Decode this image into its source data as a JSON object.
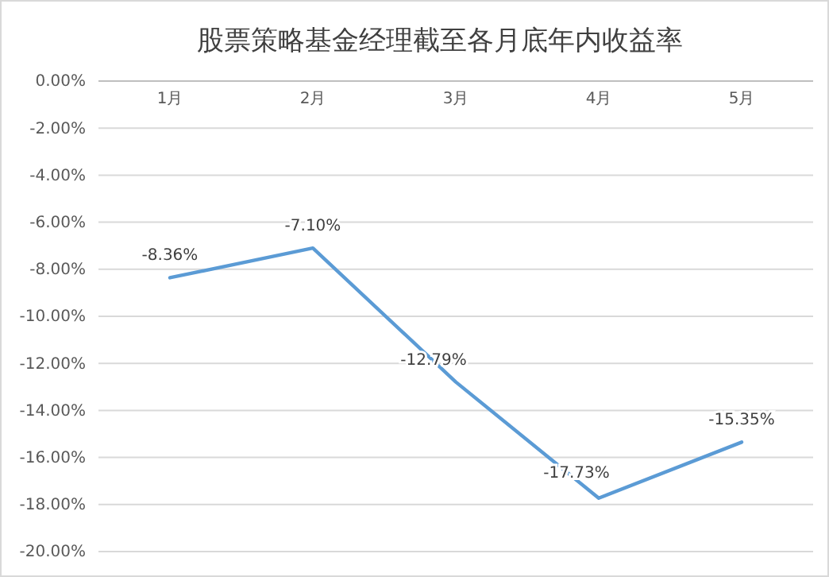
{
  "chart_data": {
    "type": "line",
    "title": "股票策略基金经理截至各月底年内收益率",
    "categories": [
      "1月",
      "2月",
      "3月",
      "4月",
      "5月"
    ],
    "series": [
      {
        "color": "#5b9bd5",
        "values": [
          -8.36,
          -7.1,
          -12.79,
          -17.73,
          -15.35
        ],
        "value_labels": [
          "-8.36%",
          "-7.10%",
          "-12.79%",
          "-17.73%",
          "-15.35%"
        ]
      }
    ],
    "ylim": [
      -20,
      0
    ],
    "yticks": [
      {
        "value": 0,
        "label": "0.00%"
      },
      {
        "value": -2,
        "label": "-2.00%"
      },
      {
        "value": -4,
        "label": "-4.00%"
      },
      {
        "value": -6,
        "label": "-6.00%"
      },
      {
        "value": -8,
        "label": "-8.00%"
      },
      {
        "value": -10,
        "label": "-10.00%"
      },
      {
        "value": -12,
        "label": "-12.00%"
      },
      {
        "value": -14,
        "label": "-14.00%"
      },
      {
        "value": -16,
        "label": "-16.00%"
      },
      {
        "value": -18,
        "label": "-18.00%"
      },
      {
        "value": -20,
        "label": "-20.00%"
      }
    ],
    "grid": "y",
    "marker": "none",
    "line_style": "solid"
  }
}
